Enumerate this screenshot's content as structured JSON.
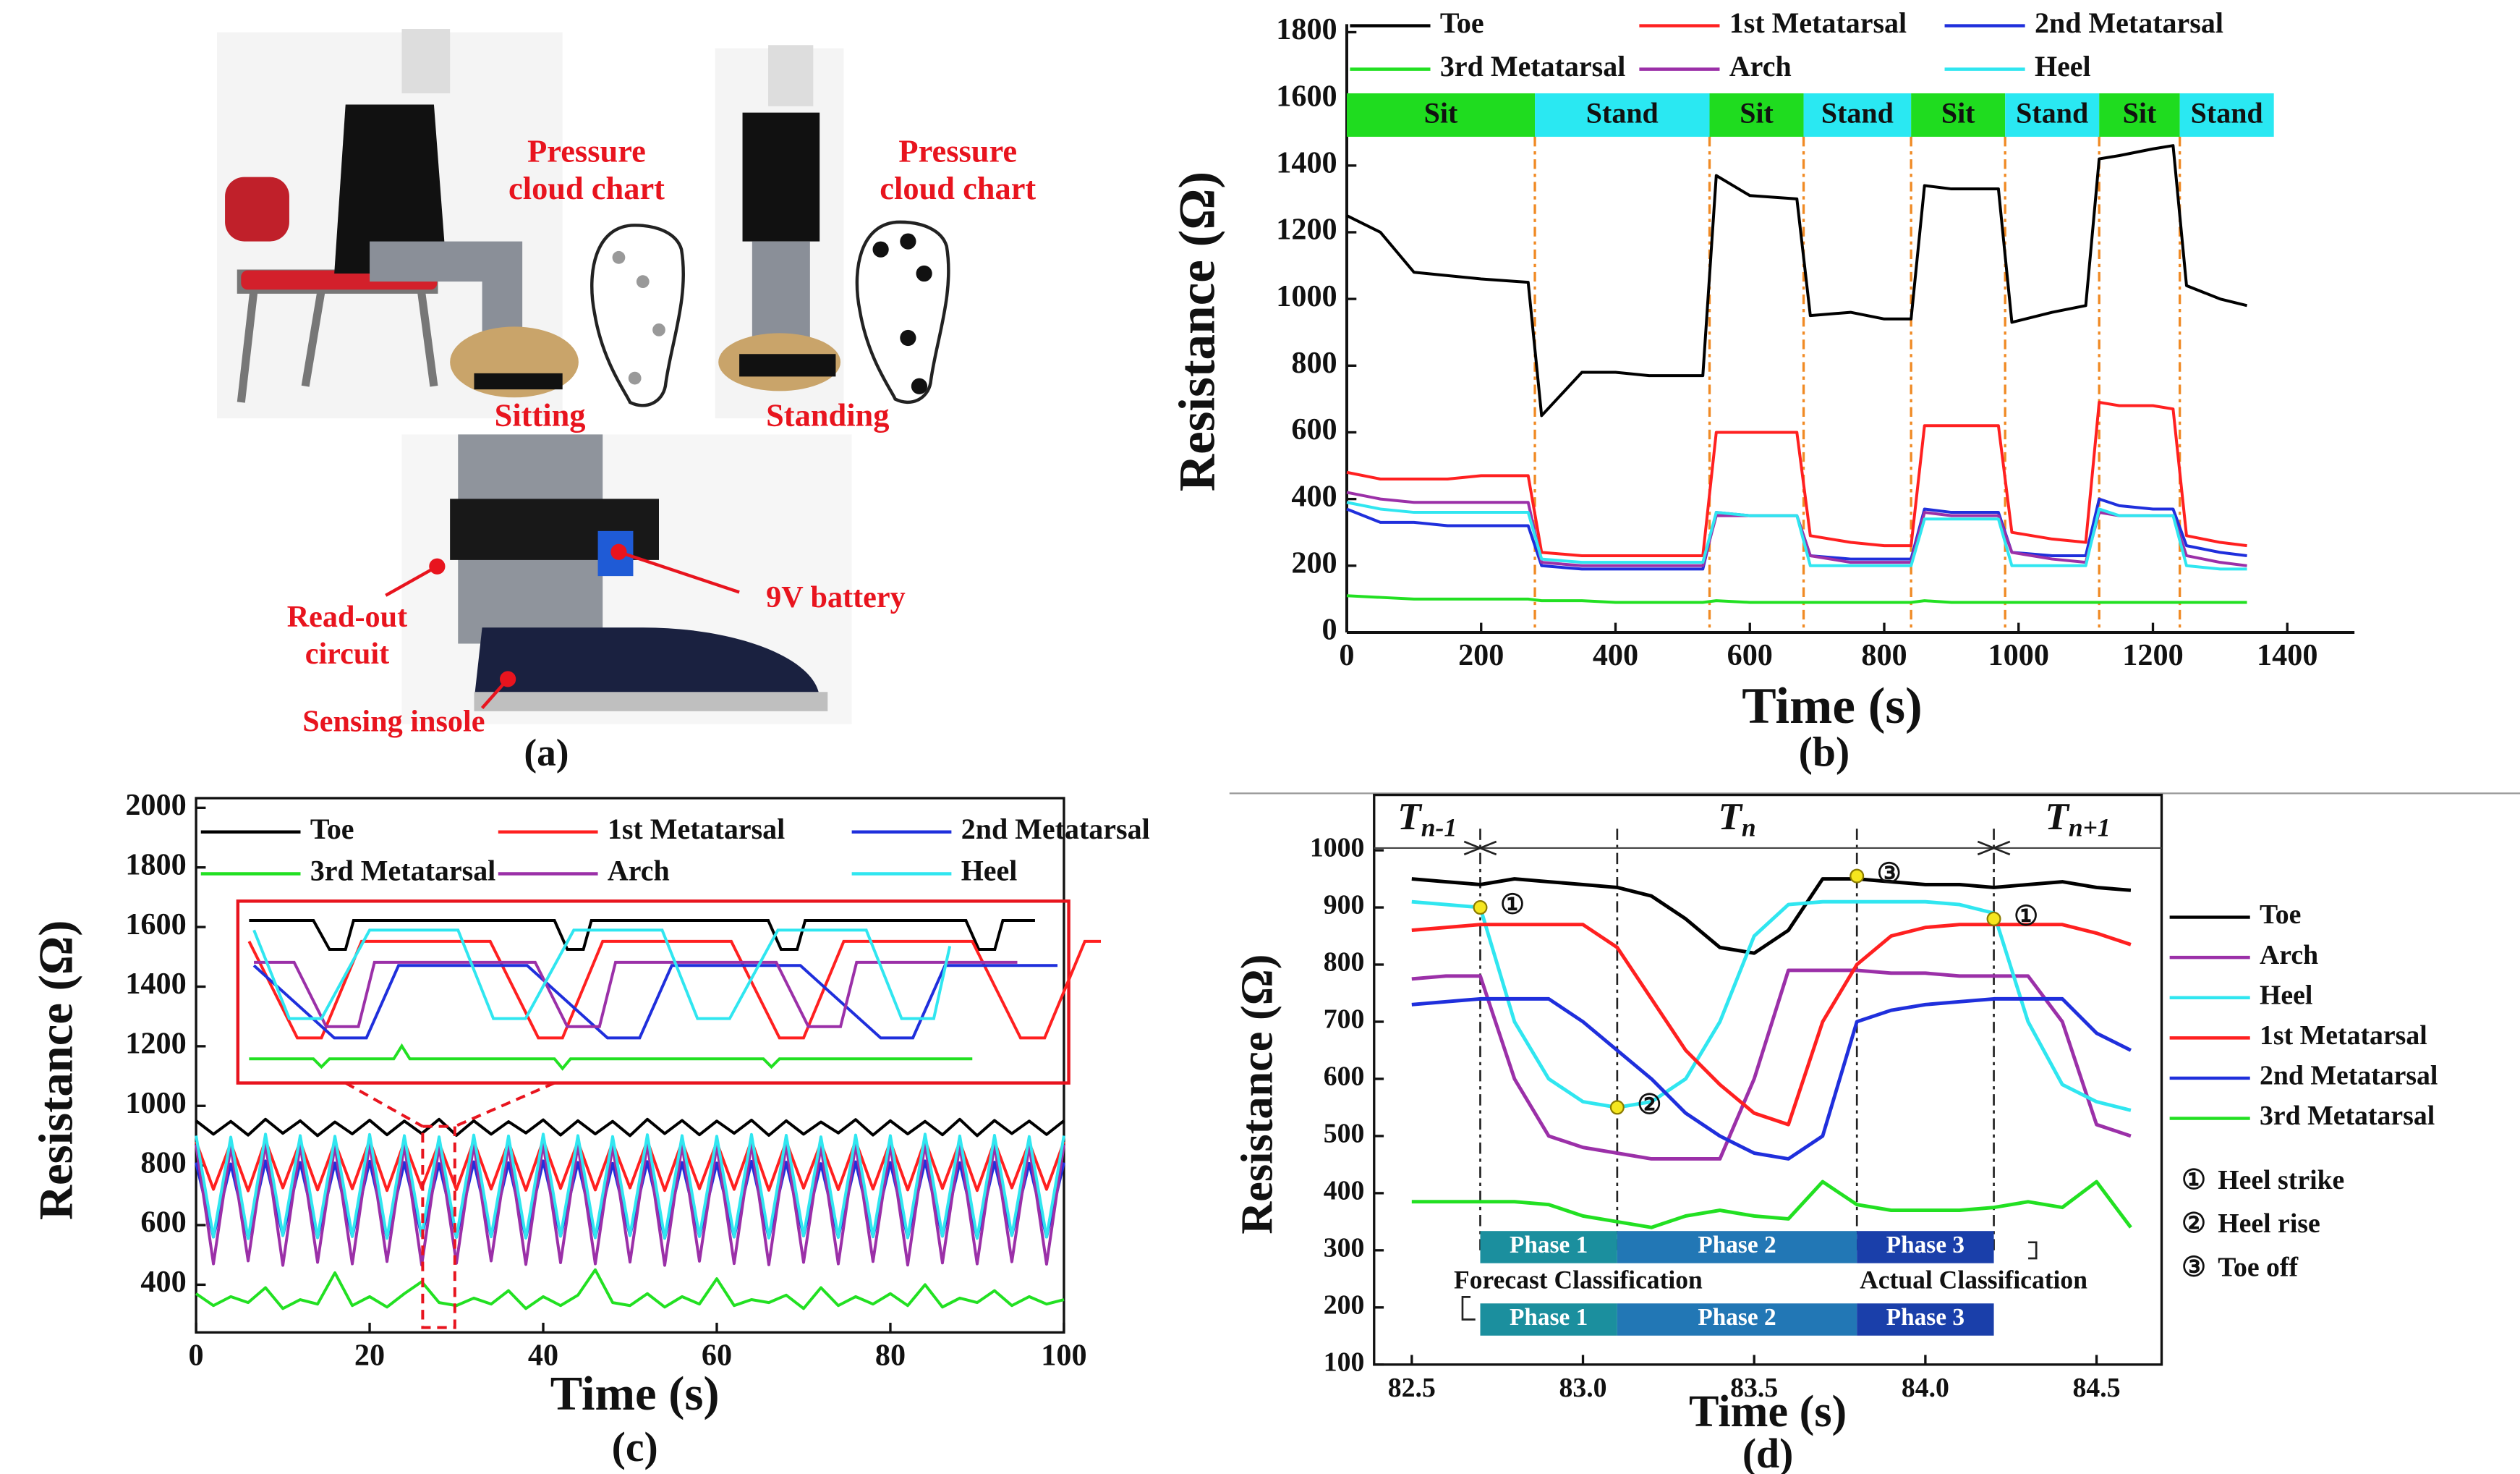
{
  "photo": {
    "pressure_label": [
      "Pressure",
      "cloud chart"
    ],
    "sitting": "Sitting",
    "standing": "Standing",
    "readout": [
      "Read-out",
      "circuit"
    ],
    "battery": "9V battery",
    "insole": "Sensing insole",
    "caption": "(a)"
  },
  "chart_data": [
    {
      "type": "line",
      "caption": "(b)",
      "x_label": "Time (s)",
      "y_label": "Resistance (Ω)",
      "xlim": [
        0,
        1500
      ],
      "xticks": [
        0,
        200,
        400,
        600,
        800,
        1000,
        1200,
        1400
      ],
      "ylim": [
        0,
        1800
      ],
      "yticks": [
        0,
        200,
        400,
        600,
        800,
        1000,
        1200,
        1400,
        1600,
        1800
      ],
      "x": [
        0,
        50,
        100,
        150,
        200,
        270,
        290,
        350,
        400,
        450,
        530,
        550,
        600,
        670,
        690,
        750,
        800,
        840,
        860,
        900,
        970,
        990,
        1050,
        1100,
        1120,
        1150,
        1200,
        1230,
        1250,
        1300,
        1340
      ],
      "series": [
        {
          "name": "Toe",
          "color": "#000000",
          "values": [
            1250,
            1200,
            1080,
            1070,
            1060,
            1050,
            650,
            780,
            780,
            770,
            770,
            1370,
            1310,
            1300,
            950,
            960,
            940,
            940,
            1340,
            1330,
            1330,
            930,
            960,
            980,
            1420,
            1430,
            1450,
            1460,
            1040,
            1000,
            980
          ]
        },
        {
          "name": "1st Metatarsal",
          "color": "#ff2020",
          "values": [
            480,
            460,
            460,
            460,
            470,
            470,
            240,
            230,
            230,
            230,
            230,
            600,
            600,
            600,
            290,
            270,
            260,
            260,
            620,
            620,
            620,
            300,
            280,
            270,
            690,
            680,
            680,
            670,
            290,
            270,
            260
          ]
        },
        {
          "name": "2nd Metatarsal",
          "color": "#1f2fdc",
          "values": [
            370,
            330,
            330,
            320,
            320,
            320,
            200,
            190,
            190,
            190,
            190,
            360,
            350,
            350,
            230,
            220,
            220,
            220,
            370,
            360,
            360,
            240,
            230,
            230,
            400,
            380,
            370,
            370,
            260,
            240,
            230
          ]
        },
        {
          "name": "3rd Metatarsal",
          "color": "#22e022",
          "values": [
            110,
            105,
            100,
            100,
            100,
            100,
            95,
            95,
            90,
            90,
            90,
            95,
            90,
            90,
            90,
            90,
            90,
            90,
            95,
            90,
            90,
            90,
            90,
            90,
            90,
            90,
            90,
            90,
            90,
            90,
            90
          ]
        },
        {
          "name": "Arch",
          "color": "#9b30a8",
          "values": [
            420,
            400,
            390,
            390,
            390,
            390,
            210,
            200,
            200,
            200,
            200,
            350,
            350,
            350,
            230,
            210,
            210,
            210,
            360,
            350,
            350,
            240,
            220,
            210,
            360,
            350,
            350,
            350,
            230,
            210,
            200
          ]
        },
        {
          "name": "Heel",
          "color": "#30e6f0",
          "values": [
            390,
            370,
            360,
            360,
            360,
            360,
            220,
            210,
            210,
            210,
            210,
            360,
            350,
            350,
            200,
            200,
            200,
            200,
            340,
            340,
            340,
            200,
            200,
            200,
            370,
            350,
            350,
            350,
            200,
            190,
            190
          ]
        }
      ],
      "phases": [
        {
          "label": "Sit",
          "start": 0,
          "end": 280,
          "color": "#1fdc1f"
        },
        {
          "label": "Stand",
          "start": 280,
          "end": 540,
          "color": "#2ae8f2"
        },
        {
          "label": "Sit",
          "start": 540,
          "end": 680,
          "color": "#1fdc1f"
        },
        {
          "label": "Stand",
          "start": 680,
          "end": 840,
          "color": "#2ae8f2"
        },
        {
          "label": "Sit",
          "start": 840,
          "end": 980,
          "color": "#1fdc1f"
        },
        {
          "label": "Stand",
          "start": 980,
          "end": 1120,
          "color": "#2ae8f2"
        },
        {
          "label": "Sit",
          "start": 1120,
          "end": 1240,
          "color": "#1fdc1f"
        },
        {
          "label": "Stand",
          "start": 1240,
          "end": 1380,
          "color": "#2ae8f2"
        }
      ]
    },
    {
      "type": "line",
      "caption": "(c)",
      "x_label": "Time (s)",
      "y_label": "Resistance (Ω)",
      "xlim": [
        0,
        100
      ],
      "xticks": [
        0,
        20,
        40,
        60,
        80,
        100
      ],
      "ylim": [
        240,
        2000
      ],
      "yticks": [
        400,
        600,
        800,
        1000,
        1200,
        1400,
        1600,
        1800,
        2000
      ],
      "x": [
        0,
        2,
        4,
        6,
        8,
        10,
        12,
        14,
        16,
        18,
        20,
        22,
        24,
        26,
        28,
        30,
        32,
        34,
        36,
        38,
        40,
        42,
        44,
        46,
        48,
        50,
        52,
        54,
        56,
        58,
        60,
        62,
        64,
        66,
        68,
        70,
        72,
        74,
        76,
        78,
        80,
        82,
        84,
        86,
        88,
        90,
        92,
        94,
        96,
        98,
        100
      ],
      "series": [
        {
          "name": "Toe",
          "color": "#000000",
          "values": [
            950,
            905,
            948,
            902,
            955,
            908,
            950,
            900,
            946,
            906,
            952,
            903,
            949,
            907,
            955,
            901,
            950,
            905,
            947,
            909,
            953,
            902,
            950,
            906,
            948,
            900,
            955,
            907,
            951,
            903,
            949,
            908,
            952,
            901,
            950,
            905,
            946,
            909,
            954,
            902,
            950,
            906,
            948,
            903,
            955,
            900,
            951,
            907,
            949,
            904,
            950
          ]
        },
        {
          "name": "1st Metatarsal",
          "color": "#ff2020",
          "values": [
            880,
            720,
            875,
            715,
            885,
            725,
            880,
            718,
            878,
            722,
            884,
            716,
            880,
            724,
            876,
            719,
            882,
            721,
            879,
            717,
            885,
            723,
            880,
            718,
            877,
            725,
            883,
            716,
            880,
            722,
            878,
            720,
            884,
            717,
            881,
            724,
            876,
            719,
            882,
            721,
            880,
            718,
            885,
            723,
            879,
            716,
            881,
            725,
            877,
            720,
            880
          ]
        },
        {
          "name": "2nd Metatarsal",
          "color": "#1f2fdc",
          "values": [
            810,
            560,
            805,
            555,
            815,
            565,
            810,
            558,
            808,
            562,
            814,
            556,
            810,
            564,
            806,
            559,
            812,
            561,
            809,
            557,
            815,
            563,
            810,
            558,
            807,
            565,
            813,
            556,
            810,
            562,
            808,
            560,
            814,
            557,
            811,
            564,
            806,
            559,
            812,
            561,
            810,
            558,
            815,
            563,
            809,
            556,
            811,
            565,
            807,
            560,
            810
          ]
        },
        {
          "name": "3rd Metatarsal",
          "color": "#22e022",
          "values": [
            370,
            330,
            360,
            340,
            390,
            320,
            350,
            335,
            440,
            330,
            360,
            325,
            370,
            410,
            340,
            330,
            355,
            335,
            380,
            320,
            360,
            330,
            365,
            450,
            340,
            330,
            370,
            325,
            360,
            335,
            420,
            330,
            350,
            340,
            365,
            320,
            390,
            330,
            360,
            335,
            370,
            330,
            400,
            325,
            355,
            340,
            380,
            330,
            360,
            335,
            350
          ]
        },
        {
          "name": "Arch",
          "color": "#9b30a8",
          "values": [
            870,
            470,
            865,
            480,
            875,
            465,
            870,
            475,
            868,
            470,
            874,
            478,
            870,
            466,
            866,
            472,
            872,
            480,
            869,
            468,
            875,
            474,
            870,
            470,
            867,
            476,
            873,
            465,
            870,
            479,
            868,
            471,
            874,
            467,
            871,
            475,
            866,
            470,
            872,
            478,
            870,
            466,
            875,
            473,
            869,
            470,
            871,
            477,
            867,
            469,
            870
          ]
        },
        {
          "name": "Heel",
          "color": "#30e6f0",
          "values": [
            900,
            560,
            895,
            555,
            905,
            565,
            900,
            558,
            898,
            562,
            904,
            556,
            900,
            564,
            896,
            559,
            902,
            561,
            899,
            557,
            905,
            563,
            900,
            558,
            897,
            565,
            903,
            556,
            900,
            562,
            898,
            560,
            904,
            557,
            901,
            564,
            896,
            559,
            902,
            561,
            900,
            558,
            905,
            563,
            899,
            556,
            901,
            565,
            897,
            560,
            900
          ]
        }
      ]
    },
    {
      "type": "line",
      "caption": "(d)",
      "x_label": "Time (s)",
      "y_label": "Resistance (Ω)",
      "xlim": [
        82.39,
        84.69
      ],
      "xticks": [
        82.5,
        {
          "value": 83,
          "label": "83.0"
        },
        83.5,
        {
          "value": 84,
          "label": "84.0"
        },
        84.5
      ],
      "ylim": [
        100,
        1080
      ],
      "yticks": [
        100,
        200,
        300,
        400,
        500,
        600,
        700,
        800,
        900,
        1000
      ],
      "x": [
        82.5,
        82.6,
        82.7,
        82.8,
        82.9,
        83.0,
        83.1,
        83.2,
        83.3,
        83.4,
        83.5,
        83.6,
        83.7,
        83.8,
        83.9,
        84.0,
        84.1,
        84.2,
        84.3,
        84.4,
        84.5,
        84.6
      ],
      "series": [
        {
          "name": "Toe",
          "color": "#000000",
          "values": [
            950,
            945,
            940,
            950,
            945,
            940,
            935,
            920,
            880,
            830,
            820,
            860,
            950,
            950,
            945,
            940,
            940,
            935,
            940,
            945,
            935,
            930
          ]
        },
        {
          "name": "Arch",
          "color": "#9b30a8",
          "values": [
            775,
            780,
            780,
            600,
            500,
            480,
            470,
            460,
            460,
            460,
            600,
            790,
            790,
            790,
            785,
            785,
            780,
            780,
            780,
            700,
            520,
            500
          ]
        },
        {
          "name": "Heel",
          "color": "#30e6f0",
          "values": [
            910,
            905,
            900,
            700,
            600,
            560,
            550,
            560,
            600,
            700,
            850,
            905,
            910,
            910,
            910,
            910,
            905,
            890,
            700,
            590,
            560,
            545
          ]
        },
        {
          "name": "1st Metatarsal",
          "color": "#ff2020",
          "values": [
            860,
            865,
            870,
            870,
            870,
            870,
            830,
            740,
            650,
            590,
            540,
            520,
            700,
            800,
            850,
            865,
            870,
            870,
            870,
            870,
            855,
            835
          ]
        },
        {
          "name": "2nd Metatarsal",
          "color": "#1f2fdc",
          "values": [
            730,
            735,
            740,
            740,
            740,
            700,
            650,
            600,
            540,
            500,
            470,
            460,
            500,
            700,
            720,
            730,
            735,
            740,
            740,
            740,
            680,
            650
          ]
        },
        {
          "name": "3rd Metatarsal",
          "color": "#22e022",
          "values": [
            385,
            385,
            385,
            385,
            380,
            360,
            350,
            340,
            360,
            370,
            360,
            355,
            420,
            380,
            370,
            370,
            370,
            375,
            385,
            375,
            420,
            340
          ]
        }
      ],
      "boundaries": [
        82.7,
        83.1,
        83.8,
        84.2
      ],
      "periods": [
        {
          "base": "T",
          "sub": "n-1"
        },
        {
          "base": "T",
          "sub": "n"
        },
        {
          "base": "T",
          "sub": "n+1"
        }
      ],
      "key_points": [
        {
          "symbol": "①",
          "x": 82.7,
          "y": 900
        },
        {
          "symbol": "②",
          "x": 83.1,
          "y": 550
        },
        {
          "symbol": "③",
          "x": 83.8,
          "y": 955
        },
        {
          "symbol": "①",
          "x": 84.2,
          "y": 880
        }
      ],
      "key_legend": [
        {
          "symbol": "①",
          "label": "Heel strike"
        },
        {
          "symbol": "②",
          "label": "Heel rise"
        },
        {
          "symbol": "③",
          "label": "Toe off"
        }
      ],
      "phase_rows": [
        [
          {
            "label": "Phase 1",
            "start": 82.7,
            "end": 83.1,
            "color": "#1b8f9e"
          },
          {
            "label": "Phase 2",
            "start": 83.1,
            "end": 83.8,
            "color": "#2277b5"
          },
          {
            "label": "Phase 3",
            "start": 83.8,
            "end": 84.2,
            "color": "#1a3faa"
          }
        ],
        [
          {
            "label": "Phase 1",
            "start": 82.7,
            "end": 83.1,
            "color": "#1b8f9e"
          },
          {
            "label": "Phase 2",
            "start": 83.1,
            "end": 83.8,
            "color": "#2277b5"
          },
          {
            "label": "Phase 3",
            "start": 83.8,
            "end": 84.2,
            "color": "#1a3faa"
          }
        ]
      ],
      "classification_labels": [
        "Forecast Classification",
        "Actual Classification"
      ]
    }
  ]
}
